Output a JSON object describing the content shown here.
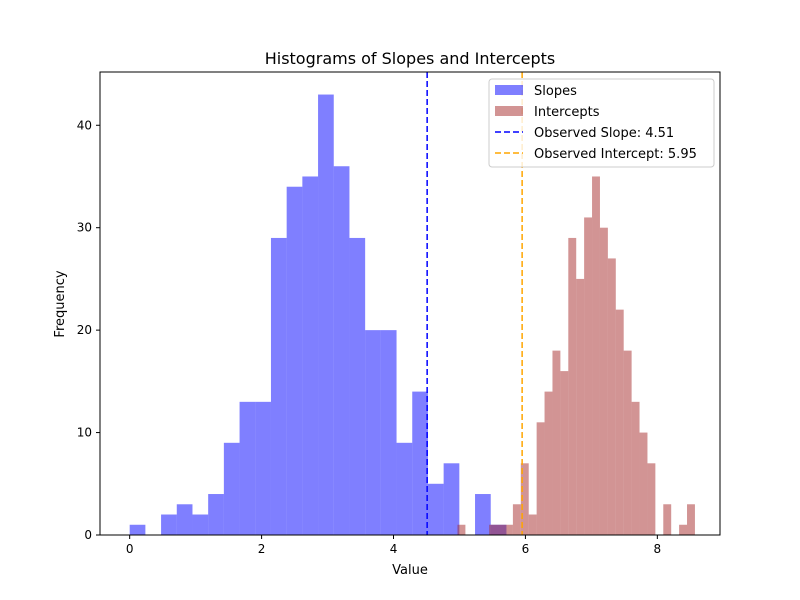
{
  "chart_data": {
    "type": "bar",
    "title": "Histograms of Slopes and Intercepts",
    "xlabel": "Value",
    "ylabel": "Frequency",
    "xlim": [
      -0.45,
      8.95
    ],
    "ylim": [
      0,
      45.2
    ],
    "xticks": [
      "0",
      "2",
      "4",
      "6",
      "8"
    ],
    "yticks": [
      "0",
      "10",
      "20",
      "30",
      "40"
    ],
    "grid": false,
    "legend_position": "top-right",
    "series": [
      {
        "name": "Slopes",
        "color": "#0000ff",
        "alpha": 0.5,
        "bin_edges": [
          0.0,
          0.238,
          0.476,
          0.714,
          0.952,
          1.19,
          1.428,
          1.666,
          1.904,
          2.142,
          2.38,
          2.618,
          2.856,
          3.094,
          3.332,
          3.57,
          3.808,
          4.046,
          4.284,
          4.522,
          4.76,
          4.998,
          5.236,
          5.474,
          5.712
        ],
        "counts": [
          1,
          0,
          2,
          3,
          2,
          4,
          9,
          13,
          13,
          29,
          34,
          35,
          43,
          36,
          29,
          20,
          20,
          9,
          14,
          5,
          7,
          0,
          4,
          1
        ]
      },
      {
        "name": "Intercepts",
        "color": "#a52a2a",
        "alpha": 0.5,
        "bin_edges": [
          4.97,
          5.09,
          5.21,
          5.33,
          5.45,
          5.57,
          5.69,
          5.81,
          5.93,
          6.05,
          6.17,
          6.29,
          6.41,
          6.53,
          6.65,
          6.77,
          6.89,
          7.01,
          7.13,
          7.25,
          7.37,
          7.49,
          7.61,
          7.73,
          7.85,
          7.97,
          8.09,
          8.21,
          8.33,
          8.45,
          8.57
        ],
        "counts": [
          1,
          0,
          0,
          0,
          1,
          1,
          1,
          3,
          7,
          2,
          11,
          14,
          18,
          16,
          29,
          25,
          31,
          35,
          30,
          27,
          22,
          18,
          13,
          10,
          7,
          0,
          3,
          0,
          1,
          3
        ]
      }
    ],
    "lines": [
      {
        "name": "Observed Slope: 4.51",
        "x": 4.51,
        "color": "#0000ff",
        "style": "dashed"
      },
      {
        "name": "Observed Intercept: 5.95",
        "x": 5.95,
        "color": "#ffa500",
        "style": "dashed"
      }
    ]
  }
}
